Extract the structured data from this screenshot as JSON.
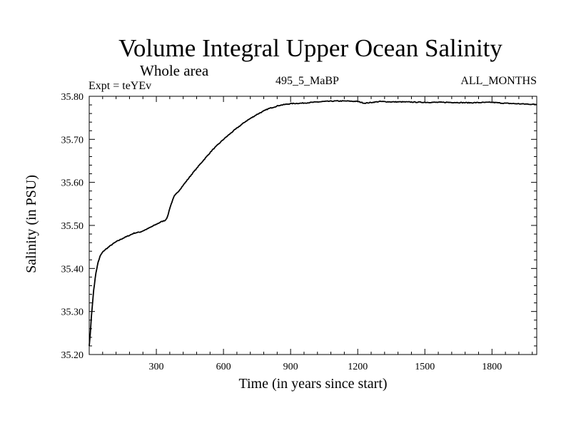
{
  "chart_data": {
    "type": "line",
    "title": "Volume Integral Upper Ocean Salinity",
    "subtitle": "Whole area",
    "expt_label": "Expt = teYEv",
    "center_label": "495_5_MaBP",
    "right_label": "ALL_MONTHS",
    "xlabel": "Time (in years since start)",
    "ylabel": "Salinity (in PSU)",
    "xlim": [
      0,
      2000
    ],
    "ylim": [
      35.2,
      35.8
    ],
    "x_ticks": [
      300,
      600,
      900,
      1200,
      1500,
      1800
    ],
    "x_tick_labels": [
      "300",
      "600",
      "900",
      "1200",
      "1500",
      "1800"
    ],
    "y_ticks": [
      35.2,
      35.3,
      35.4,
      35.5,
      35.6,
      35.7,
      35.8
    ],
    "y_tick_labels": [
      "35.20",
      "35.30",
      "35.40",
      "35.50",
      "35.60",
      "35.70",
      "35.80"
    ],
    "grid": false,
    "series": [
      {
        "name": "salinity",
        "x": [
          0,
          5,
          10,
          20,
          30,
          40,
          50,
          60,
          70,
          80,
          100,
          120,
          150,
          180,
          200,
          230,
          260,
          290,
          320,
          340,
          350,
          360,
          370,
          380,
          400,
          430,
          460,
          500,
          550,
          600,
          650,
          700,
          750,
          800,
          850,
          900,
          950,
          1000,
          1050,
          1100,
          1150,
          1200,
          1230,
          1250,
          1300,
          1350,
          1400,
          1500,
          1600,
          1700,
          1800,
          1850,
          1900,
          1950,
          2000
        ],
        "y": [
          35.22,
          35.25,
          35.29,
          35.35,
          35.39,
          35.415,
          35.43,
          35.438,
          35.443,
          35.447,
          35.455,
          35.462,
          35.47,
          35.477,
          35.482,
          35.485,
          35.492,
          35.5,
          35.508,
          35.512,
          35.52,
          35.54,
          35.555,
          35.568,
          35.58,
          35.6,
          35.62,
          35.645,
          35.675,
          35.7,
          35.722,
          35.742,
          35.758,
          35.771,
          35.779,
          35.783,
          35.784,
          35.786,
          35.788,
          35.789,
          35.789,
          35.788,
          35.784,
          35.785,
          35.788,
          35.787,
          35.787,
          35.786,
          35.786,
          35.785,
          35.786,
          35.784,
          35.783,
          35.782,
          35.781
        ]
      }
    ]
  }
}
